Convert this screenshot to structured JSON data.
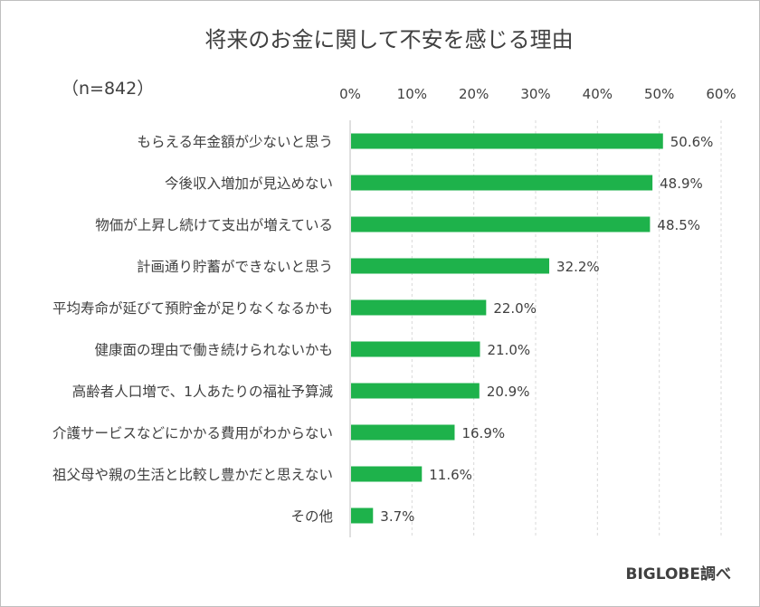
{
  "chart_data": {
    "type": "bar",
    "orientation": "horizontal",
    "title": "将来のお金に関して不安を感じる理由",
    "sample_size": "（n=842）",
    "source": "BIGLOBE調べ",
    "bar_color": "#1eb24b",
    "xlim": [
      0,
      60
    ],
    "xticks": [
      "0%",
      "10%",
      "20%",
      "30%",
      "40%",
      "50%",
      "60%"
    ],
    "grid": true,
    "categories": [
      "もらえる年金額が少ないと思う",
      "今後収入増加が見込めない",
      "物価が上昇し続けて支出が増えている",
      "計画通り貯蓄ができないと思う",
      "平均寿命が延びて預貯金が足りなくなるかも",
      "健康面の理由で働き続けられないかも",
      "高齢者人口増で、1人あたりの福祉予算減",
      "介護サービスなどにかかる費用がわからない",
      "祖父母や親の生活と比較し豊かだと思えない",
      "その他"
    ],
    "values": [
      50.6,
      48.9,
      48.5,
      32.2,
      22.0,
      21.0,
      20.9,
      16.9,
      11.6,
      3.7
    ],
    "value_labels": [
      "50.6%",
      "48.9%",
      "48.5%",
      "32.2%",
      "22.0%",
      "21.0%",
      "20.9%",
      "16.9%",
      "11.6%",
      "3.7%"
    ]
  }
}
